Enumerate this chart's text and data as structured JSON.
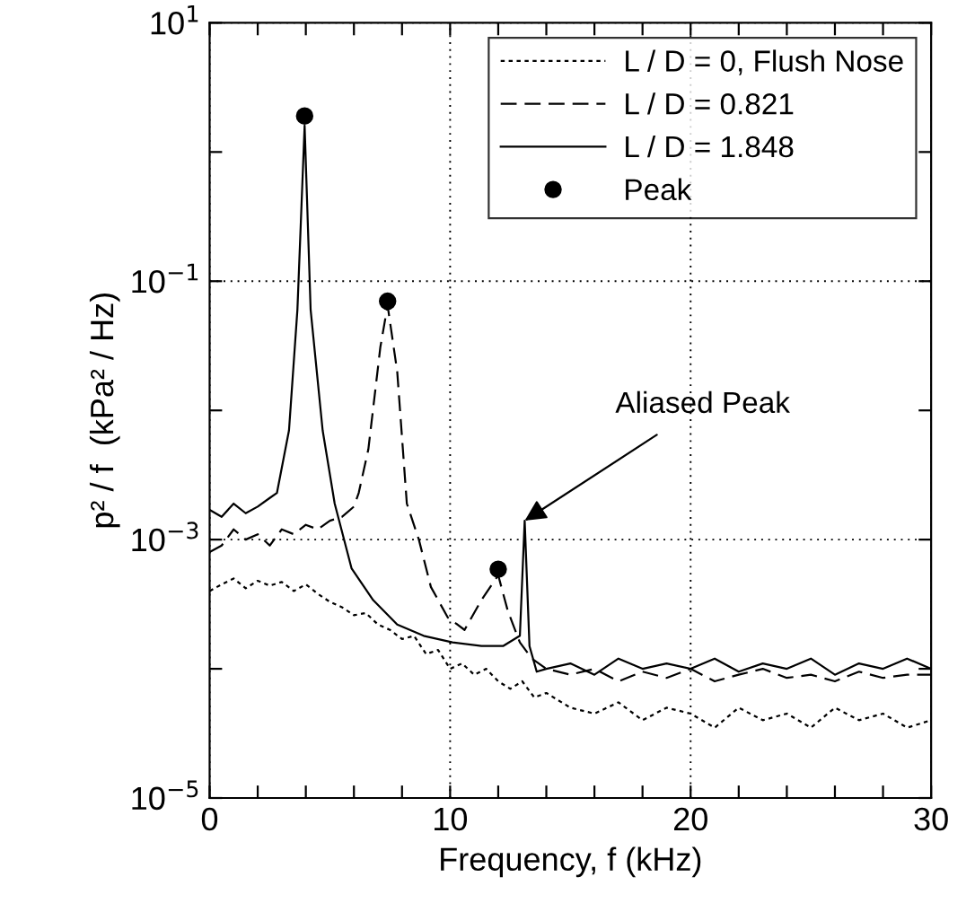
{
  "chart_data": {
    "type": "line",
    "xlabel": "Frequency, f (kHz)",
    "ylabel": "p² / f  (kPa² / Hz)",
    "log": "y",
    "xlim": [
      0,
      30
    ],
    "ylim": [
      1e-05,
      10
    ],
    "xticks": [
      0,
      {
        "value": 2,
        "label": null
      },
      {
        "value": 4,
        "label": null
      },
      {
        "value": 6,
        "label": null
      },
      {
        "value": 8,
        "label": null
      },
      10,
      {
        "value": 12,
        "label": null
      },
      {
        "value": 14,
        "label": null
      },
      {
        "value": 16,
        "label": null
      },
      {
        "value": 18,
        "label": null
      },
      20,
      {
        "value": 22,
        "label": null
      },
      {
        "value": 24,
        "label": null
      },
      {
        "value": 26,
        "label": null
      },
      {
        "value": 28,
        "label": null
      },
      30
    ],
    "yticks": [
      {
        "value": 1e-05,
        "label": "10$^{−5}$"
      },
      {
        "value": 0.0001,
        "label": null
      },
      {
        "value": 0.001,
        "label": "10$^{−3}$"
      },
      {
        "value": 0.01,
        "label": null
      },
      {
        "value": 0.1,
        "label": "10$^{−1}$"
      },
      {
        "value": 1,
        "label": null
      },
      {
        "value": 10,
        "label": "10$^{1}$"
      }
    ],
    "grid": true,
    "legend": "top right",
    "series": [
      {
        "name": "L / D = 0, Flush Nose",
        "color": "#000000",
        "line_style": "dotted",
        "x": [
          0,
          0.5,
          1,
          1.5,
          2,
          2.5,
          3,
          3.5,
          4,
          4.5,
          5,
          5.5,
          6,
          6.5,
          7,
          7.5,
          8,
          8.5,
          9,
          9.5,
          10,
          10.5,
          11,
          11.5,
          12,
          12.5,
          13,
          13.5,
          14,
          15,
          16,
          17,
          18,
          19,
          20,
          21,
          22,
          23,
          24,
          25,
          26,
          27,
          28,
          29,
          30
        ],
        "values": [
          0.0004,
          0.00045,
          0.0005,
          0.00042,
          0.00048,
          0.00044,
          0.00047,
          0.0004,
          0.00045,
          0.00038,
          0.00033,
          0.0003,
          0.00026,
          0.00027,
          0.00022,
          0.0002,
          0.00017,
          0.00018,
          0.00013,
          0.00014,
          0.0001,
          0.00011,
          9e-05,
          0.0001,
          8e-05,
          7e-05,
          8e-05,
          6e-05,
          6.5e-05,
          5e-05,
          4.5e-05,
          5.5e-05,
          4e-05,
          5e-05,
          4.5e-05,
          3.5e-05,
          5e-05,
          4e-05,
          4.5e-05,
          3.5e-05,
          5e-05,
          4e-05,
          4.5e-05,
          3.5e-05,
          4e-05
        ]
      },
      {
        "name": "L / D = 0.821",
        "color": "#000000",
        "line_style": "dashed",
        "x": [
          0,
          0.5,
          1,
          1.5,
          2,
          2.5,
          3,
          3.5,
          4,
          4.5,
          5,
          5.5,
          6,
          6.2,
          6.6,
          7.1,
          7.4,
          7.8,
          8.2,
          8.7,
          9.2,
          9.9,
          10.6,
          11.3,
          12.0,
          12.4,
          12.9,
          13.4,
          14,
          15,
          16,
          17,
          18,
          19,
          20,
          21,
          22,
          23,
          24,
          25,
          26,
          27,
          28,
          29,
          30
        ],
        "values": [
          0.0008,
          0.0009,
          0.0012,
          0.001,
          0.0011,
          0.0009,
          0.0012,
          0.0011,
          0.0013,
          0.0012,
          0.0014,
          0.0015,
          0.0018,
          0.0023,
          0.005,
          0.031,
          0.065,
          0.02,
          0.0019,
          0.001,
          0.00043,
          0.00025,
          0.0002,
          0.00034,
          0.00053,
          0.00028,
          0.00016,
          0.00012,
          0.0001,
          9e-05,
          0.0001,
          8e-05,
          9.5e-05,
          8.5e-05,
          0.0001,
          8e-05,
          9e-05,
          0.0001,
          8.5e-05,
          9e-05,
          8e-05,
          9.5e-05,
          8.5e-05,
          9e-05,
          9e-05
        ]
      },
      {
        "name": "L / D = 1.848",
        "color": "#000000",
        "line_style": "solid",
        "x": [
          0,
          0.5,
          1,
          1.5,
          2,
          2.5,
          2.8,
          3.3,
          3.65,
          3.95,
          4.2,
          4.7,
          5.2,
          5.9,
          6.8,
          7.8,
          8.9,
          10.1,
          11.3,
          12.2,
          12.9,
          13.1,
          13.3,
          13.6,
          14,
          15,
          16,
          17,
          18,
          19,
          20,
          21,
          22,
          23,
          24,
          25,
          26,
          27,
          28,
          29,
          30
        ],
        "values": [
          0.0017,
          0.0015,
          0.0019,
          0.0016,
          0.0018,
          0.0021,
          0.0023,
          0.007,
          0.06,
          1.6,
          0.06,
          0.007,
          0.0019,
          0.0006,
          0.00034,
          0.00022,
          0.00018,
          0.00016,
          0.00015,
          0.00015,
          0.00018,
          0.0014,
          0.00015,
          9.5e-05,
          0.0001,
          0.00011,
          9e-05,
          0.00012,
          0.0001,
          0.00011,
          0.0001,
          0.00012,
          9.5e-05,
          0.00011,
          0.0001,
          0.00012,
          9e-05,
          0.00011,
          0.0001,
          0.00012,
          0.0001
        ]
      },
      {
        "name": "Peak",
        "type": "scatter",
        "marker": "circle",
        "color": "#000000",
        "x": [
          3.95,
          7.4,
          12.0
        ],
        "values": [
          1.9,
          0.07,
          0.00059
        ]
      }
    ],
    "annotations": [
      {
        "text": "Aliased Peak",
        "x": 13.1,
        "y": 0.0014
      }
    ]
  }
}
